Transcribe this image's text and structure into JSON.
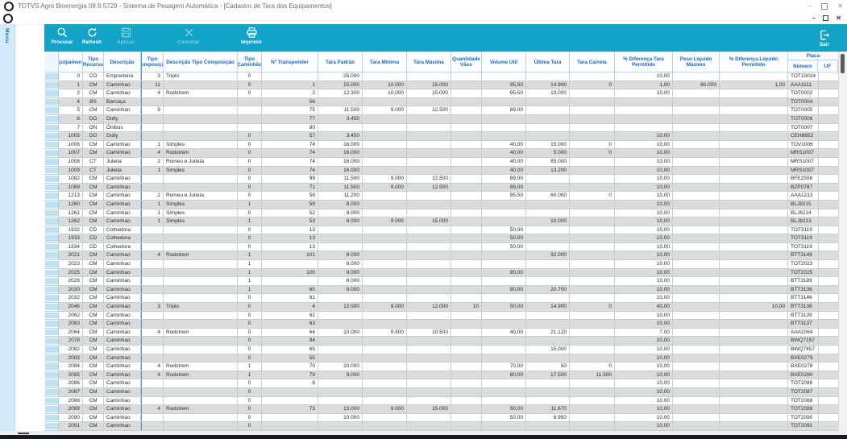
{
  "window": {
    "title": "TOTVS Agro Bioenergia 08.9.5729 - Sistema de Pesagem Automática - [Cadastro de Tara dos Equipamentos]",
    "minimize_glyph": "–",
    "close_glyph": "✕",
    "mdi_minimize_glyph": "–",
    "mdi_close_glyph": "✕",
    "logo_icon": "totvs-logo-icon"
  },
  "menu_tab": {
    "label": "Menu"
  },
  "toolbar": {
    "buttons": [
      {
        "label": "Procurar",
        "icon": "search-icon",
        "enabled": true
      },
      {
        "label": "Refresh",
        "icon": "refresh-icon",
        "enabled": true
      },
      {
        "label": "Aplicar",
        "icon": "save-icon",
        "enabled": false
      },
      {
        "label": "Cancelar",
        "icon": "cancel-icon",
        "enabled": false
      },
      {
        "label": "Imprimir",
        "icon": "print-icon",
        "enabled": true
      }
    ],
    "exit": {
      "label": "Sair",
      "icon": "exit-icon"
    }
  },
  "colors": {
    "toolbar_teal": "#12a3c7",
    "header_blue_text": "#1a67b8",
    "menu_strip_blue": "#d3eaf9",
    "row_alt_gray": "#d9dcdc",
    "row_header_blue": "#bfe2f3",
    "bottom_bar_navy": "#141a26"
  },
  "grid": {
    "columns": [
      {
        "label": "Equipamento"
      },
      {
        "label": "Tipo Recurso"
      },
      {
        "label": "Descrição"
      },
      {
        "label": "Tipo Composição"
      },
      {
        "label": "Descrição Tipo Composição"
      },
      {
        "label": "Tipo Caminhão"
      },
      {
        "label": "Nº Transponder"
      },
      {
        "label": "Tara Padrão"
      },
      {
        "label": "Tara Mínima"
      },
      {
        "label": "Tara Máxima"
      },
      {
        "label": "Quantidade Vãos"
      },
      {
        "label": "Volume Util"
      },
      {
        "label": "Última Tara"
      },
      {
        "label": "Tara Carreta"
      },
      {
        "label": "% Diferença Tara Permitido"
      },
      {
        "label": "Peso Líquido Máximo"
      },
      {
        "label": "% Diferença Líquido Permitido"
      }
    ],
    "placa_group": {
      "label": "Placa",
      "children": [
        "Número",
        "UF"
      ]
    },
    "rows": [
      [
        "0",
        "CO",
        "Empreiteira",
        "3",
        "Triplo",
        "0",
        "",
        "25.000",
        "",
        "",
        "",
        "",
        "",
        "",
        "10,00",
        "",
        "",
        "TOT10024",
        ""
      ],
      [
        "1",
        "CM",
        "Caminhao",
        "11",
        "",
        "0",
        "1",
        "15.000",
        "10.000",
        "15.000",
        "",
        "95,50",
        "14.900",
        "0",
        "1,00",
        "80.000",
        "1,00",
        "AAA1111",
        ""
      ],
      [
        "2",
        "CM",
        "Caminhao",
        "4",
        "Rodotrem",
        "0",
        "2",
        "12.300",
        "10.000",
        "15.000",
        "",
        "95,50",
        "13.000",
        "",
        "10,00",
        "",
        "",
        "TOT0002",
        ""
      ],
      [
        "4",
        "BS",
        "Barcaça",
        "",
        "",
        "",
        "56",
        "",
        "",
        "",
        "",
        "",
        "",
        "",
        "",
        "",
        "",
        "TOT0004",
        ""
      ],
      [
        "5",
        "CM",
        "Caminhao",
        "9",
        "",
        "",
        "75",
        "11.500",
        "9.000",
        "12.500",
        "",
        "89,00",
        "",
        "",
        "",
        "",
        "",
        "TOT0005",
        ""
      ],
      [
        "6",
        "DO",
        "Dolly",
        "",
        "",
        "",
        "77",
        "3.450",
        "",
        "",
        "",
        "",
        "",
        "",
        "",
        "",
        "",
        "TOT0006",
        ""
      ],
      [
        "7",
        "ON",
        "Ônibus",
        "",
        "",
        "",
        "80",
        "",
        "",
        "",
        "",
        "",
        "",
        "",
        "",
        "",
        "",
        "TOT0007",
        ""
      ],
      [
        "1005",
        "DO",
        "Dolly",
        "",
        "",
        "0",
        "57",
        "3.450",
        "",
        "",
        "",
        "",
        "",
        "",
        "10,00",
        "",
        "",
        "CEH8652",
        ""
      ],
      [
        "1006",
        "CM",
        "Caminhao",
        "1",
        "Simples",
        "0",
        "74",
        "16.000",
        "",
        "",
        "",
        "40,00",
        "15.000",
        "0",
        "10,00",
        "",
        "",
        "TOV1006",
        ""
      ],
      [
        "1007",
        "CM",
        "Caminhao",
        "4",
        "Rodotrem",
        "0",
        "74",
        "16.000",
        "",
        "",
        "",
        "40,00",
        "5.000",
        "0",
        "10,00",
        "",
        "",
        "MRS1007",
        ""
      ],
      [
        "1008",
        "CT",
        "Julieta",
        "2",
        "Romeu e Julieta",
        "0",
        "74",
        "16.000",
        "",
        "",
        "",
        "40,00",
        "85.000",
        "",
        "10,00",
        "",
        "",
        "MRS1007",
        ""
      ],
      [
        "1009",
        "CT",
        "Julieta",
        "1",
        "Simples",
        "0",
        "74",
        "16.000",
        "",
        "",
        "",
        "40,00",
        "13.200",
        "",
        "10,00",
        "",
        "",
        "MRS1007",
        ""
      ],
      [
        "1082",
        "CM",
        "Caminhao",
        "",
        "",
        "0",
        "99",
        "11.500",
        "9.000",
        "12.500",
        "",
        "89,00",
        "",
        "",
        "10,00",
        "",
        "",
        "BFE2508",
        ""
      ],
      [
        "1089",
        "CM",
        "Caminhao",
        "",
        "",
        "0",
        "71",
        "11.500",
        "9.000",
        "12.500",
        "",
        "89,00",
        "",
        "",
        "10,00",
        "",
        "",
        "BZP0787",
        ""
      ],
      [
        "1213",
        "CM",
        "Caminhao",
        "2",
        "Romeu e Julieta",
        "0",
        "58",
        "11.200",
        "",
        "",
        "",
        "95,50",
        "60.000",
        "0",
        "10,00",
        "",
        "",
        "AAA1213",
        ""
      ],
      [
        "1260",
        "CM",
        "Caminhao",
        "1",
        "Simples",
        "1",
        "59",
        "8.000",
        "",
        "",
        "",
        "",
        "",
        "",
        "10,00",
        "",
        "",
        "BLJ8215",
        ""
      ],
      [
        "1261",
        "CM",
        "Caminhao",
        "1",
        "Simples",
        "0",
        "52",
        "8.000",
        "",
        "",
        "",
        "",
        "",
        "",
        "10,00",
        "",
        "",
        "BLJ8214",
        ""
      ],
      [
        "1262",
        "CM",
        "Caminhao",
        "1",
        "Simples",
        "1",
        "53",
        "8.000",
        "9.000",
        "15.000",
        "",
        "",
        "10.000",
        "",
        "10,00",
        "",
        "",
        "BLJ8213",
        ""
      ],
      [
        "1932",
        "CD",
        "Colhedora",
        "",
        "",
        "0",
        "13",
        "",
        "",
        "",
        "",
        "50,00",
        "",
        "",
        "10,00",
        "",
        "",
        "TOT3119",
        ""
      ],
      [
        "1933",
        "CD",
        "Colhedora",
        "",
        "",
        "0",
        "13",
        "",
        "",
        "",
        "",
        "50,00",
        "",
        "",
        "10,00",
        "",
        "",
        "TOT3119",
        ""
      ],
      [
        "1934",
        "CD",
        "Colhedora",
        "",
        "",
        "0",
        "13",
        "",
        "",
        "",
        "",
        "50,00",
        "",
        "",
        "10,00",
        "",
        "",
        "TOT3119",
        ""
      ],
      [
        "2021",
        "CM",
        "Caminhao",
        "4",
        "Rodotrem",
        "1",
        "101",
        "8.000",
        "",
        "",
        "",
        "",
        "32.000",
        "",
        "10,00",
        "",
        "",
        "BTT3149",
        ""
      ],
      [
        "2023",
        "CM",
        "Caminhao",
        "",
        "",
        "1",
        "",
        "8.000",
        "",
        "",
        "",
        "",
        "",
        "",
        "10,00",
        "",
        "",
        "TOT2023",
        ""
      ],
      [
        "2025",
        "CM",
        "Caminhao",
        "",
        "",
        "1",
        "100",
        "8.000",
        "",
        "",
        "",
        "80,00",
        "",
        "",
        "10,00",
        "",
        "",
        "TOT2025",
        ""
      ],
      [
        "2026",
        "CM",
        "Caminhao",
        "",
        "",
        "1",
        "",
        "8.000",
        "",
        "",
        "",
        "",
        "",
        "",
        "10,00",
        "",
        "",
        "BTT3189",
        ""
      ],
      [
        "2030",
        "CM",
        "Caminhao",
        "",
        "",
        "1",
        "60",
        "8.000",
        "",
        "",
        "",
        "80,00",
        "20.700",
        "",
        "10,00",
        "",
        "",
        "BTT3136",
        ""
      ],
      [
        "2032",
        "CM",
        "Caminhao",
        "",
        "",
        "0",
        "61",
        "",
        "",
        "",
        "",
        "",
        "",
        "",
        "10,00",
        "",
        "",
        "BTT3146",
        ""
      ],
      [
        "2046",
        "CM",
        "Caminhao",
        "3",
        "Triplo",
        "0",
        "4",
        "12.000",
        "9.000",
        "12.000",
        "10",
        "50,00",
        "14.900",
        "0",
        "40,00",
        "",
        "10,00",
        "BTT3138",
        ""
      ],
      [
        "2062",
        "CM",
        "Caminhao",
        "",
        "",
        "0",
        "62",
        "",
        "",
        "",
        "",
        "",
        "",
        "",
        "10,00",
        "",
        "",
        "BTT3139",
        ""
      ],
      [
        "2063",
        "CM",
        "Caminhao",
        "",
        "",
        "0",
        "63",
        "",
        "",
        "",
        "",
        "",
        "",
        "",
        "10,00",
        "",
        "",
        "BTT3137",
        ""
      ],
      [
        "2064",
        "CM",
        "Caminhao",
        "4",
        "Rodotrem",
        "0",
        "64",
        "10.000",
        "9.500",
        "10.500",
        "",
        "40,00",
        "21.120",
        "",
        "7,00",
        "",
        "",
        "AAA2064",
        ""
      ],
      [
        "2078",
        "CM",
        "Caminhao",
        "",
        "",
        "0",
        "84",
        "",
        "",
        "",
        "",
        "",
        "",
        "",
        "10,00",
        "",
        "",
        "BWQ7157",
        ""
      ],
      [
        "2082",
        "CM",
        "Caminhao",
        "",
        "",
        "0",
        "65",
        "",
        "",
        "",
        "",
        "",
        "15.000",
        "",
        "10,00",
        "",
        "",
        "BWQ7457",
        ""
      ],
      [
        "2083",
        "CM",
        "Caminhao",
        "",
        "",
        "0",
        "55",
        "",
        "",
        "",
        "",
        "",
        "",
        "",
        "10,00",
        "",
        "",
        "BXE0279",
        ""
      ],
      [
        "2084",
        "CM",
        "Caminhao",
        "4",
        "Rodotrem",
        "1",
        "70",
        "10.000",
        "",
        "",
        "",
        "70,00",
        "50",
        "0",
        "10,00",
        "",
        "",
        "BXE0278",
        ""
      ],
      [
        "2085",
        "CM",
        "Caminhao",
        "4",
        "Rodotrem",
        "1",
        "79",
        "9.000",
        "",
        "",
        "",
        "80,00",
        "17.500",
        "11.500",
        "10,00",
        "",
        "",
        "BXE0280",
        ""
      ],
      [
        "2086",
        "CM",
        "Caminhao",
        "",
        "",
        "0",
        "8",
        "",
        "",
        "",
        "",
        "",
        "",
        "",
        "10,00",
        "",
        "",
        "TOT2086",
        ""
      ],
      [
        "2087",
        "CM",
        "Caminhao",
        "",
        "",
        "0",
        "",
        "",
        "",
        "",
        "",
        "",
        "",
        "",
        "10,00",
        "",
        "",
        "TOT2087",
        ""
      ],
      [
        "2088",
        "CM",
        "Caminhao",
        "",
        "",
        "0",
        "",
        "",
        "",
        "",
        "",
        "",
        "",
        "",
        "10,00",
        "",
        "",
        "TOT2088",
        ""
      ],
      [
        "2089",
        "CM",
        "Caminhao",
        "4",
        "Rodotrem",
        "0",
        "73",
        "13.000",
        "9.000",
        "15.000",
        "",
        "50,00",
        "11.670",
        "",
        "10,00",
        "",
        "",
        "TOT2089",
        ""
      ],
      [
        "2090",
        "CM",
        "Caminhao",
        "",
        "",
        "0",
        "",
        "10.000",
        "",
        "",
        "",
        "50,00",
        "6.950",
        "",
        "10,00",
        "",
        "",
        "TOT2090",
        ""
      ],
      [
        "2091",
        "CM",
        "Caminhao",
        "",
        "",
        "0",
        "",
        "",
        "",
        "",
        "",
        "",
        "",
        "",
        "10,00",
        "",
        "",
        "TOT2091",
        ""
      ]
    ]
  }
}
